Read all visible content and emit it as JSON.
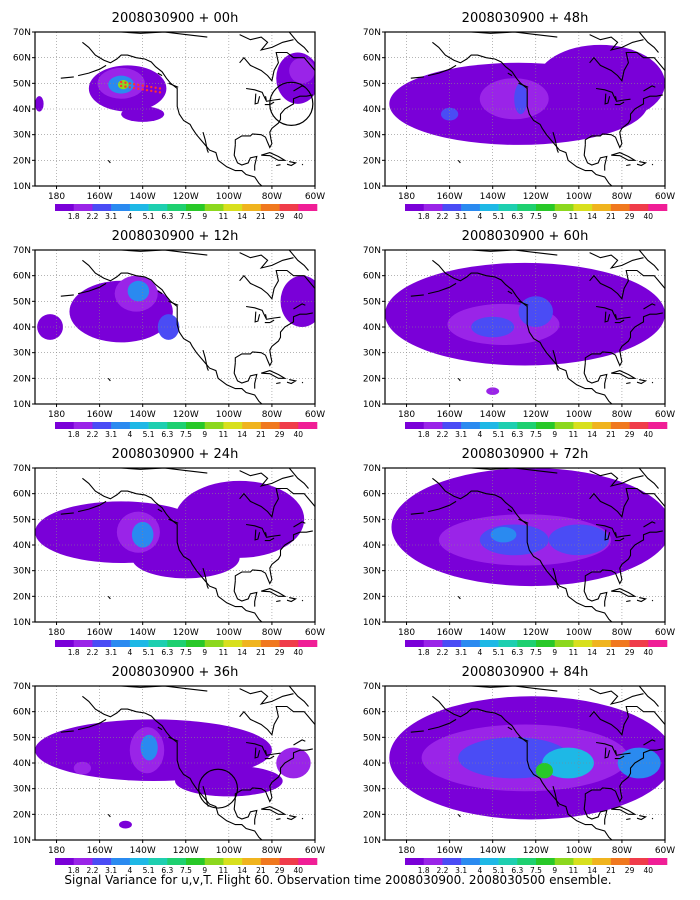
{
  "caption": "Signal Variance for u,v,T. Flight 60. Observation time 2008030900. 2008030500 ensemble.",
  "chart_data": {
    "type": "heatmap",
    "x_ticks": [
      "180",
      "160W",
      "140W",
      "120W",
      "100W",
      "80W",
      "60W"
    ],
    "y_ticks": [
      "70N",
      "60N",
      "50N",
      "40N",
      "30N",
      "20N",
      "10N"
    ],
    "xlim": [
      -190,
      -60
    ],
    "ylim": [
      10,
      70
    ],
    "grid": true,
    "colorbar": {
      "levels": [
        "1.8",
        "2.2",
        "3.1",
        "4",
        "5.1",
        "6.3",
        "7.5",
        "9",
        "11",
        "14",
        "21",
        "29",
        "40"
      ],
      "colors": [
        "#7a00d8",
        "#9a24e8",
        "#4a4cf5",
        "#2a8af0",
        "#1eb8e6",
        "#1ecfb0",
        "#1ed070",
        "#28c828",
        "#8cd81e",
        "#d8e01e",
        "#f0b41e",
        "#f0781e",
        "#f03c4a",
        "#f01e96"
      ]
    },
    "panels": [
      {
        "title": "2008030900 + 00h",
        "blobs": [
          {
            "lon": -147,
            "lat": 48,
            "rx": 18,
            "ry": 9,
            "level": 0
          },
          {
            "lon": -150,
            "lat": 50,
            "rx": 11,
            "ry": 6,
            "level": 1
          },
          {
            "lon": -150,
            "lat": 49.5,
            "rx": 6,
            "ry": 3.5,
            "level": 3
          },
          {
            "lon": -149,
            "lat": 49.5,
            "rx": 2.5,
            "ry": 1.8,
            "level": 8
          },
          {
            "lon": -188,
            "lat": 42,
            "rx": 2,
            "ry": 3,
            "level": 0
          },
          {
            "lon": -140,
            "lat": 38,
            "rx": 10,
            "ry": 3,
            "level": 0
          },
          {
            "lon": -68,
            "lat": 52,
            "rx": 10,
            "ry": 10,
            "level": 0
          },
          {
            "lon": -66,
            "lat": 55,
            "rx": 6,
            "ry": 5,
            "level": 1
          }
        ],
        "circles": [
          {
            "lon": -71,
            "lat": 42,
            "r": 10
          }
        ]
      },
      {
        "title": "2008030900 + 48h",
        "blobs": [
          {
            "lon": -128,
            "lat": 42,
            "rx": 60,
            "ry": 16,
            "level": 0
          },
          {
            "lon": -90,
            "lat": 50,
            "rx": 30,
            "ry": 15,
            "level": 0
          },
          {
            "lon": -130,
            "lat": 44,
            "rx": 16,
            "ry": 8,
            "level": 1
          },
          {
            "lon": -127,
            "lat": 44,
            "rx": 3,
            "ry": 6,
            "level": 2
          },
          {
            "lon": -160,
            "lat": 38,
            "rx": 4,
            "ry": 2.5,
            "level": 2
          }
        ]
      },
      {
        "title": "2008030900 + 12h",
        "blobs": [
          {
            "lon": -150,
            "lat": 46,
            "rx": 24,
            "ry": 12,
            "level": 0
          },
          {
            "lon": -143,
            "lat": 53,
            "rx": 10,
            "ry": 7,
            "level": 1
          },
          {
            "lon": -142,
            "lat": 54,
            "rx": 5,
            "ry": 4,
            "level": 3
          },
          {
            "lon": -183,
            "lat": 40,
            "rx": 6,
            "ry": 5,
            "level": 0
          },
          {
            "lon": -128,
            "lat": 40,
            "rx": 5,
            "ry": 5,
            "level": 2
          },
          {
            "lon": -66,
            "lat": 50,
            "rx": 10,
            "ry": 10,
            "level": 0
          }
        ]
      },
      {
        "title": "2008030900 + 60h",
        "blobs": [
          {
            "lon": -125,
            "lat": 45,
            "rx": 65,
            "ry": 20,
            "level": 0
          },
          {
            "lon": -135,
            "lat": 41,
            "rx": 26,
            "ry": 8,
            "level": 1
          },
          {
            "lon": -140,
            "lat": 40,
            "rx": 10,
            "ry": 4,
            "level": 2
          },
          {
            "lon": -120,
            "lat": 46,
            "rx": 8,
            "ry": 6,
            "level": 2
          },
          {
            "lon": -140,
            "lat": 15,
            "rx": 3,
            "ry": 1.5,
            "level": 1
          }
        ]
      },
      {
        "title": "2008030900 + 24h",
        "blobs": [
          {
            "lon": -150,
            "lat": 45,
            "rx": 40,
            "ry": 12,
            "level": 0
          },
          {
            "lon": -142,
            "lat": 45,
            "rx": 10,
            "ry": 8,
            "level": 1
          },
          {
            "lon": -140,
            "lat": 44,
            "rx": 5,
            "ry": 5,
            "level": 3
          },
          {
            "lon": -95,
            "lat": 50,
            "rx": 30,
            "ry": 15,
            "level": 0
          },
          {
            "lon": -120,
            "lat": 35,
            "rx": 25,
            "ry": 8,
            "level": 0
          }
        ]
      },
      {
        "title": "2008030900 + 72h",
        "blobs": [
          {
            "lon": -122,
            "lat": 47,
            "rx": 65,
            "ry": 23,
            "level": 0
          },
          {
            "lon": -125,
            "lat": 42,
            "rx": 40,
            "ry": 10,
            "level": 1
          },
          {
            "lon": -130,
            "lat": 42,
            "rx": 16,
            "ry": 6,
            "level": 2
          },
          {
            "lon": -100,
            "lat": 42,
            "rx": 14,
            "ry": 6,
            "level": 2
          },
          {
            "lon": -135,
            "lat": 44,
            "rx": 6,
            "ry": 3,
            "level": 3
          }
        ]
      },
      {
        "title": "2008030900 + 36h",
        "blobs": [
          {
            "lon": -135,
            "lat": 45,
            "rx": 55,
            "ry": 12,
            "level": 0
          },
          {
            "lon": -138,
            "lat": 45,
            "rx": 8,
            "ry": 9,
            "level": 1
          },
          {
            "lon": -137,
            "lat": 46,
            "rx": 4,
            "ry": 5,
            "level": 3
          },
          {
            "lon": -100,
            "lat": 33,
            "rx": 25,
            "ry": 6,
            "level": 0
          },
          {
            "lon": -70,
            "lat": 40,
            "rx": 8,
            "ry": 6,
            "level": 1
          },
          {
            "lon": -168,
            "lat": 38,
            "rx": 4,
            "ry": 2.5,
            "level": 1
          },
          {
            "lon": -148,
            "lat": 16,
            "rx": 3,
            "ry": 1.5,
            "level": 0
          }
        ],
        "circles": [
          {
            "lon": -105,
            "lat": 30,
            "r": 9
          }
        ]
      },
      {
        "title": "2008030900 + 84h",
        "blobs": [
          {
            "lon": -122,
            "lat": 42,
            "rx": 66,
            "ry": 24,
            "level": 0
          },
          {
            "lon": -125,
            "lat": 42,
            "rx": 48,
            "ry": 13,
            "level": 1
          },
          {
            "lon": -130,
            "lat": 42,
            "rx": 26,
            "ry": 8,
            "level": 2
          },
          {
            "lon": -105,
            "lat": 40,
            "rx": 12,
            "ry": 6,
            "level": 4
          },
          {
            "lon": -116,
            "lat": 37,
            "rx": 4,
            "ry": 3,
            "level": 7
          },
          {
            "lon": -72,
            "lat": 40,
            "rx": 10,
            "ry": 6,
            "level": 3
          }
        ]
      }
    ]
  }
}
